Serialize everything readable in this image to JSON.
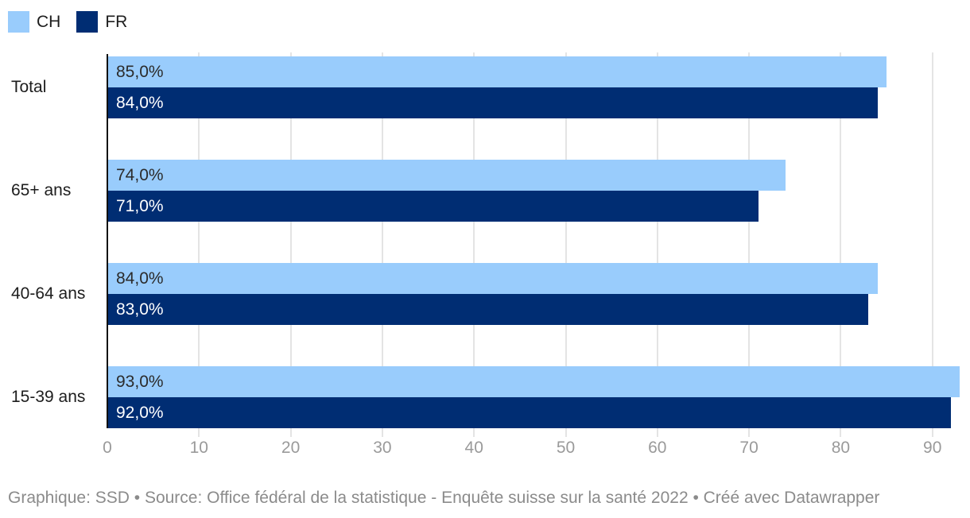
{
  "legend": {
    "items": [
      {
        "label": "CH",
        "color": "#99CCFC"
      },
      {
        "label": "FR",
        "color": "#002D73"
      }
    ]
  },
  "chart_data": {
    "type": "bar",
    "orientation": "horizontal",
    "title": "",
    "xlabel": "",
    "ylabel": "",
    "categories": [
      "Total",
      "65+ ans",
      "40-64 ans",
      "15-39 ans"
    ],
    "series": [
      {
        "name": "CH",
        "color": "#99CCFC",
        "label_color": "#2b2b2b",
        "values": [
          85.0,
          74.0,
          84.0,
          93.0
        ],
        "labels": [
          "85,0%",
          "74,0%",
          "84,0%",
          "93,0%"
        ]
      },
      {
        "name": "FR",
        "color": "#002D73",
        "label_color": "#ffffff",
        "values": [
          84.0,
          71.0,
          83.0,
          92.0
        ],
        "labels": [
          "84,0%",
          "71,0%",
          "83,0%",
          "92,0%"
        ]
      }
    ],
    "x_ticks": [
      0,
      10,
      20,
      30,
      40,
      50,
      60,
      70,
      80,
      90
    ],
    "x_max": 94.1,
    "grid": true,
    "legend_position": "top-left",
    "value_format": "percent-comma-decimal"
  },
  "footer": {
    "text": "Graphique: SSD • Source: Office fédéral de la statistique - Enquête suisse sur la santé 2022 • Créé avec Datawrapper"
  }
}
